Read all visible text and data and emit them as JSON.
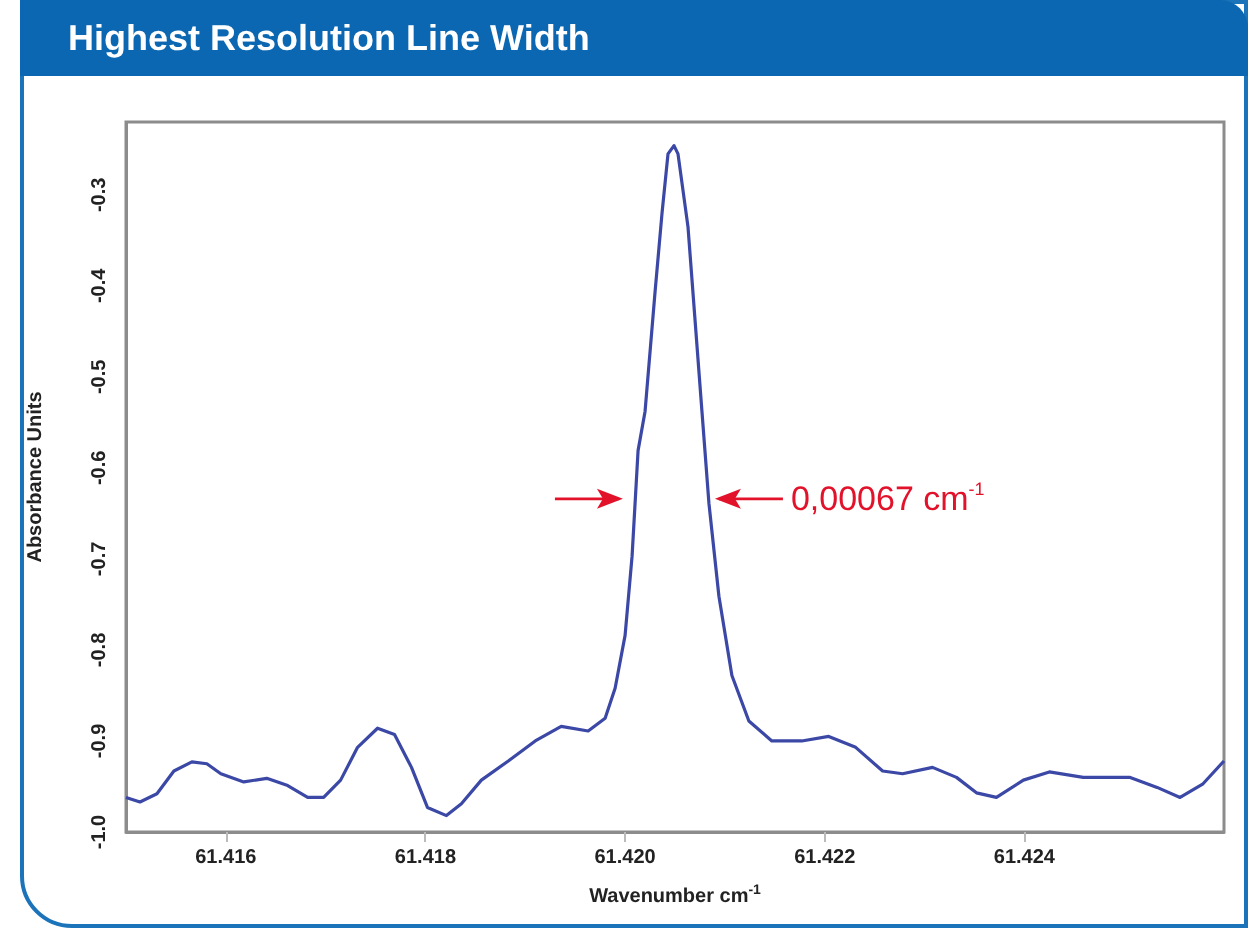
{
  "chart_data": {
    "type": "line",
    "title": "Highest Resolution Line Width",
    "xlabel": "Wavenumber cm$^{-1}$",
    "ylabel": "Absorbance Units",
    "x": [
      61.415,
      61.41514,
      61.41531,
      61.41548,
      61.41566,
      61.41581,
      61.41595,
      61.41618,
      61.41641,
      61.41662,
      61.41682,
      61.41698,
      61.41715,
      61.41732,
      61.41752,
      61.41769,
      61.41786,
      61.41802,
      61.41821,
      61.41836,
      61.41856,
      61.41883,
      61.4191,
      61.41936,
      61.41963,
      61.4198,
      61.4199,
      61.42,
      61.42007,
      61.42013,
      61.4202,
      61.4203,
      61.42037,
      61.42043,
      61.42049,
      61.42053,
      61.42063,
      61.42077,
      61.42084,
      61.42094,
      61.42107,
      61.42124,
      61.42147,
      61.42177,
      61.42204,
      61.42231,
      61.42258,
      61.42278,
      61.42308,
      61.42332,
      61.42352,
      61.42372,
      61.42399,
      61.42425,
      61.42459,
      61.42506,
      61.42533,
      61.42556,
      61.42579,
      61.426
    ],
    "series": [
      {
        "color": "#3b48a6",
        "values": [
          -0.962,
          -0.967,
          -0.958,
          -0.933,
          -0.923,
          -0.925,
          -0.936,
          -0.945,
          -0.941,
          -0.949,
          -0.962,
          -0.962,
          -0.943,
          -0.907,
          -0.886,
          -0.893,
          -0.929,
          -0.973,
          -0.982,
          -0.969,
          -0.943,
          -0.922,
          -0.9,
          -0.884,
          -0.889,
          -0.875,
          -0.842,
          -0.784,
          -0.697,
          -0.581,
          -0.538,
          -0.407,
          -0.32,
          -0.255,
          -0.246,
          -0.255,
          -0.335,
          -0.538,
          -0.639,
          -0.741,
          -0.828,
          -0.878,
          -0.9,
          -0.9,
          -0.895,
          -0.907,
          -0.933,
          -0.936,
          -0.929,
          -0.94,
          -0.957,
          -0.962,
          -0.943,
          -0.934,
          -0.94,
          -0.94,
          -0.951,
          -0.962,
          -0.947,
          -0.922
        ]
      }
    ],
    "xlim": [
      61.415,
      61.426
    ],
    "xticks": [
      61.416,
      61.418,
      {
        "value": 61.42,
        "label": "61.420"
      },
      61.422,
      61.424
    ],
    "ylim": [
      -1.0,
      -0.22
    ],
    "yticks": [
      {
        "value": -1.0,
        "label": "-1.0"
      },
      -0.9,
      -0.8,
      -0.7,
      -0.6,
      -0.5,
      -0.4,
      -0.3
    ],
    "annotations": [
      {
        "text": "0,00067 cm$^{-1}$",
        "x": 61.42086,
        "y": -0.634
      }
    ],
    "grid": false,
    "marker": "none",
    "line_style": "solid"
  }
}
